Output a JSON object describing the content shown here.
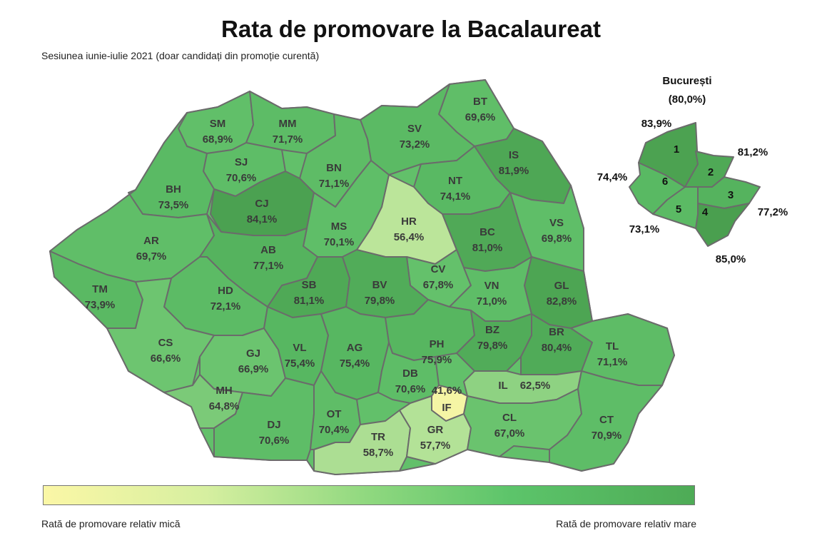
{
  "title": "Rata de promovare la Bacalaureat",
  "subtitle": "Sesiunea iunie-iulie 2021 (doar candidați din promoție curentă)",
  "legend": {
    "low_label": "Rată de promovare relativ mică",
    "high_label": "Rată de promovare relativ mare",
    "color_low": "#fbf7a6",
    "color_high": "#4eab56"
  },
  "counties": [
    {
      "code": "SM",
      "value": "68,9%",
      "pct": 68.9
    },
    {
      "code": "MM",
      "value": "71,7%",
      "pct": 71.7
    },
    {
      "code": "BT",
      "value": "69,6%",
      "pct": 69.6
    },
    {
      "code": "SV",
      "value": "73,2%",
      "pct": 73.2
    },
    {
      "code": "SJ",
      "value": "70,6%",
      "pct": 70.6
    },
    {
      "code": "BN",
      "value": "71,1%",
      "pct": 71.1
    },
    {
      "code": "IS",
      "value": "81,9%",
      "pct": 81.9
    },
    {
      "code": "BH",
      "value": "73,5%",
      "pct": 73.5
    },
    {
      "code": "CJ",
      "value": "84,1%",
      "pct": 84.1
    },
    {
      "code": "NT",
      "value": "74,1%",
      "pct": 74.1
    },
    {
      "code": "HR",
      "value": "56,4%",
      "pct": 56.4
    },
    {
      "code": "VS",
      "value": "69,8%",
      "pct": 69.8
    },
    {
      "code": "AR",
      "value": "69,7%",
      "pct": 69.7
    },
    {
      "code": "MS",
      "value": "70,1%",
      "pct": 70.1
    },
    {
      "code": "BC",
      "value": "81,0%",
      "pct": 81.0
    },
    {
      "code": "AB",
      "value": "77,1%",
      "pct": 77.1
    },
    {
      "code": "CV",
      "value": "67,8%",
      "pct": 67.8
    },
    {
      "code": "TM",
      "value": "73,9%",
      "pct": 73.9
    },
    {
      "code": "HD",
      "value": "72,1%",
      "pct": 72.1
    },
    {
      "code": "SB",
      "value": "81,1%",
      "pct": 81.1
    },
    {
      "code": "BV",
      "value": "79,8%",
      "pct": 79.8
    },
    {
      "code": "VN",
      "value": "71,0%",
      "pct": 71.0
    },
    {
      "code": "GL",
      "value": "82,8%",
      "pct": 82.8
    },
    {
      "code": "CS",
      "value": "66,6%",
      "pct": 66.6
    },
    {
      "code": "GJ",
      "value": "66,9%",
      "pct": 66.9
    },
    {
      "code": "VL",
      "value": "75,4%",
      "pct": 75.4
    },
    {
      "code": "AG",
      "value": "75,4%",
      "pct": 75.4
    },
    {
      "code": "PH",
      "value": "75,9%",
      "pct": 75.9
    },
    {
      "code": "BZ",
      "value": "79,8%",
      "pct": 79.8
    },
    {
      "code": "BR",
      "value": "80,4%",
      "pct": 80.4
    },
    {
      "code": "TL",
      "value": "71,1%",
      "pct": 71.1
    },
    {
      "code": "DB",
      "value": "70,6%",
      "pct": 70.6
    },
    {
      "code": "MH",
      "value": "64,8%",
      "pct": 64.8
    },
    {
      "code": "IF",
      "value": "41,6%",
      "pct": 41.6
    },
    {
      "code": "IL",
      "value": "62,5%",
      "pct": 62.5
    },
    {
      "code": "DJ",
      "value": "70,6%",
      "pct": 70.6
    },
    {
      "code": "OT",
      "value": "70,4%",
      "pct": 70.4
    },
    {
      "code": "TR",
      "value": "58,7%",
      "pct": 58.7
    },
    {
      "code": "GR",
      "value": "57,7%",
      "pct": 57.7
    },
    {
      "code": "CL",
      "value": "67,0%",
      "pct": 67.0
    },
    {
      "code": "CT",
      "value": "70,9%",
      "pct": 70.9
    }
  ],
  "bucharest": {
    "name": "București",
    "total": "(80,0%)",
    "sectors": [
      {
        "number": "1",
        "value": "83,9%",
        "pct": 83.9
      },
      {
        "number": "2",
        "value": "81,2%",
        "pct": 81.2
      },
      {
        "number": "3",
        "value": "77,2%",
        "pct": 77.2
      },
      {
        "number": "4",
        "value": "85,0%",
        "pct": 85.0
      },
      {
        "number": "5",
        "value": "73,1%",
        "pct": 73.1
      },
      {
        "number": "6",
        "value": "74,4%",
        "pct": 74.4
      }
    ]
  }
}
